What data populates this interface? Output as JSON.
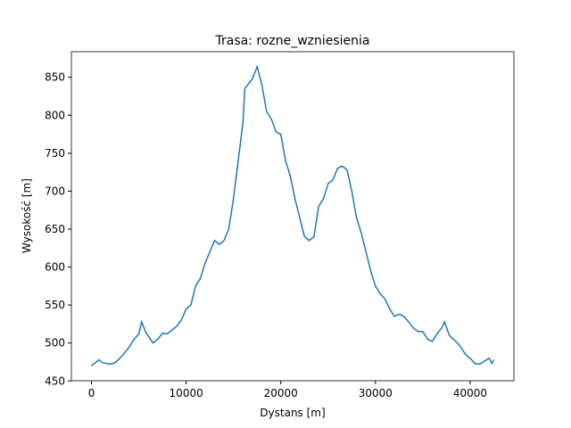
{
  "chart_data": {
    "type": "line",
    "title": "Trasa: rozne_wzniesienia",
    "xlabel": "Dystans [m]",
    "ylabel": "Wysokość [m]",
    "series": [
      {
        "name": "rozne_wzniesienia",
        "color": "#1f77b4",
        "x": [
          0,
          500,
          800,
          1200,
          2000,
          2500,
          3000,
          3500,
          4000,
          4500,
          5000,
          5300,
          5700,
          6500,
          7000,
          7500,
          8000,
          8500,
          9000,
          9500,
          10000,
          10500,
          11000,
          11500,
          12000,
          12500,
          13000,
          13500,
          14000,
          14500,
          15000,
          15500,
          16000,
          16200,
          16500,
          17000,
          17500,
          18000,
          18500,
          19000,
          19500,
          20000,
          20500,
          21000,
          21500,
          22000,
          22500,
          23000,
          23500,
          24000,
          24500,
          25000,
          25500,
          26000,
          26500,
          27000,
          27500,
          28000,
          28500,
          29000,
          29500,
          30000,
          30500,
          31000,
          31500,
          32000,
          32500,
          33000,
          33500,
          34000,
          34500,
          35000,
          35500,
          36000,
          36500,
          37000,
          37300,
          37800,
          38500,
          39000,
          39500,
          40000,
          40500,
          41000,
          41500,
          42000,
          42300,
          42500
        ],
        "values": [
          470,
          475,
          478,
          474,
          472,
          474,
          480,
          487,
          495,
          505,
          512,
          528,
          515,
          500,
          505,
          513,
          512,
          517,
          522,
          530,
          545,
          550,
          575,
          585,
          605,
          620,
          635,
          630,
          635,
          650,
          690,
          740,
          790,
          835,
          840,
          848,
          864,
          840,
          805,
          795,
          778,
          775,
          740,
          720,
          690,
          665,
          640,
          635,
          640,
          680,
          690,
          710,
          715,
          730,
          733,
          728,
          700,
          665,
          645,
          620,
          595,
          575,
          565,
          558,
          545,
          535,
          538,
          535,
          528,
          520,
          515,
          515,
          505,
          502,
          512,
          520,
          528,
          510,
          502,
          495,
          485,
          480,
          473,
          472,
          476,
          480,
          473,
          478
        ]
      }
    ],
    "xlim": [
      -2125,
      44625
    ],
    "ylim": [
      450.3,
      883.7
    ],
    "xticks": [
      0,
      10000,
      20000,
      30000,
      40000
    ],
    "yticks": [
      450,
      500,
      550,
      600,
      650,
      700,
      750,
      800,
      850
    ]
  }
}
